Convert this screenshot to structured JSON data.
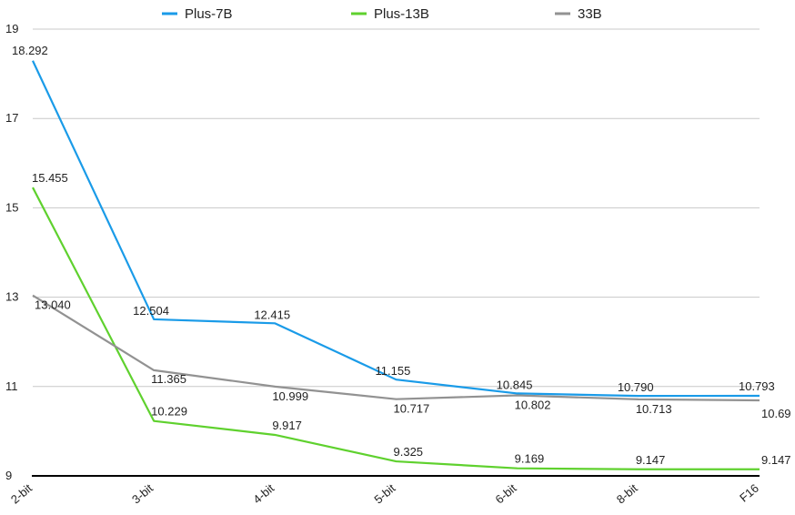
{
  "chart_data": {
    "type": "line",
    "title": "",
    "xlabel": "",
    "ylabel": "",
    "categories": [
      "2-bit",
      "3-bit",
      "4-bit",
      "5-bit",
      "6-bit",
      "8-bit",
      "F16"
    ],
    "ylim": [
      9,
      19
    ],
    "yticks": [
      9,
      11,
      13,
      15,
      17,
      19
    ],
    "grid": true,
    "legend_position": "top",
    "series": [
      {
        "name": "Plus-7B",
        "color": "#1a9be8",
        "values": [
          18.292,
          12.504,
          12.415,
          11.155,
          10.845,
          10.79,
          10.793
        ],
        "labels": [
          "18.292",
          "12.504",
          "12.415",
          "11.155",
          "10.845",
          "10.790",
          "10.793"
        ]
      },
      {
        "name": "Plus-13B",
        "color": "#5fd12e",
        "values": [
          15.455,
          10.229,
          9.917,
          9.325,
          9.169,
          9.147,
          9.147
        ],
        "labels": [
          "15.455",
          "10.229",
          "9.917",
          "9.325",
          "9.169",
          "9.147",
          "9.147"
        ]
      },
      {
        "name": "33B",
        "color": "#929292",
        "values": [
          13.04,
          11.365,
          10.999,
          10.717,
          10.802,
          10.713,
          10.69
        ],
        "labels": [
          "13.040",
          "11.365",
          "10.999",
          "10.717",
          "10.802",
          "10.713",
          "10.69"
        ]
      }
    ]
  }
}
